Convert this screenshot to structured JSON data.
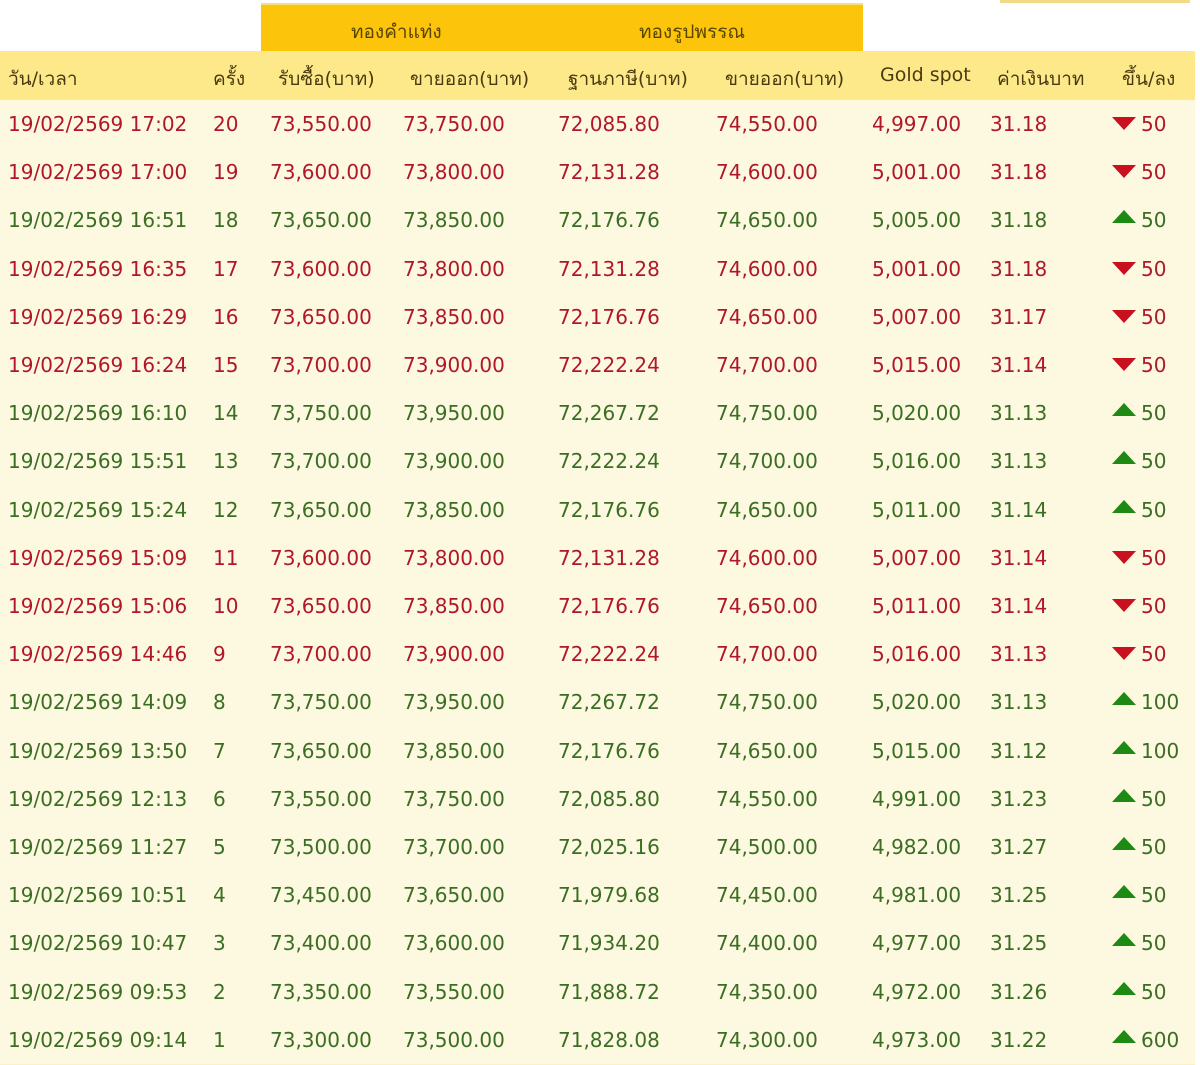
{
  "header": {
    "group1": "ทองคำแท่ง",
    "group2": "ทองรูปพรรณ",
    "columns": [
      "วัน/เวลา",
      "ครั้ง",
      "รับซื้อ(บาท)",
      "ขายออก(บาท)",
      "ฐานภาษี(บาท)",
      "ขายออก(บาท)",
      "Gold spot",
      "ค่าเงินบาท",
      "ขึ้น/ลง"
    ]
  },
  "colors": {
    "down": "#b0182a",
    "up": "#3a6e22",
    "header": "#fde98a",
    "group": "#fcc40a"
  },
  "rows": [
    [
      "19/02/2569 17:02",
      "20",
      "73,550.00",
      "73,750.00",
      "72,085.80",
      "74,550.00",
      "4,997.00",
      "31.18",
      "down",
      "50"
    ],
    [
      "19/02/2569 17:00",
      "19",
      "73,600.00",
      "73,800.00",
      "72,131.28",
      "74,600.00",
      "5,001.00",
      "31.18",
      "down",
      "50"
    ],
    [
      "19/02/2569 16:51",
      "18",
      "73,650.00",
      "73,850.00",
      "72,176.76",
      "74,650.00",
      "5,005.00",
      "31.18",
      "up",
      "50"
    ],
    [
      "19/02/2569 16:35",
      "17",
      "73,600.00",
      "73,800.00",
      "72,131.28",
      "74,600.00",
      "5,001.00",
      "31.18",
      "down",
      "50"
    ],
    [
      "19/02/2569 16:29",
      "16",
      "73,650.00",
      "73,850.00",
      "72,176.76",
      "74,650.00",
      "5,007.00",
      "31.17",
      "down",
      "50"
    ],
    [
      "19/02/2569 16:24",
      "15",
      "73,700.00",
      "73,900.00",
      "72,222.24",
      "74,700.00",
      "5,015.00",
      "31.14",
      "down",
      "50"
    ],
    [
      "19/02/2569 16:10",
      "14",
      "73,750.00",
      "73,950.00",
      "72,267.72",
      "74,750.00",
      "5,020.00",
      "31.13",
      "up",
      "50"
    ],
    [
      "19/02/2569 15:51",
      "13",
      "73,700.00",
      "73,900.00",
      "72,222.24",
      "74,700.00",
      "5,016.00",
      "31.13",
      "up",
      "50"
    ],
    [
      "19/02/2569 15:24",
      "12",
      "73,650.00",
      "73,850.00",
      "72,176.76",
      "74,650.00",
      "5,011.00",
      "31.14",
      "up",
      "50"
    ],
    [
      "19/02/2569 15:09",
      "11",
      "73,600.00",
      "73,800.00",
      "72,131.28",
      "74,600.00",
      "5,007.00",
      "31.14",
      "down",
      "50"
    ],
    [
      "19/02/2569 15:06",
      "10",
      "73,650.00",
      "73,850.00",
      "72,176.76",
      "74,650.00",
      "5,011.00",
      "31.14",
      "down",
      "50"
    ],
    [
      "19/02/2569 14:46",
      "9",
      "73,700.00",
      "73,900.00",
      "72,222.24",
      "74,700.00",
      "5,016.00",
      "31.13",
      "down",
      "50"
    ],
    [
      "19/02/2569 14:09",
      "8",
      "73,750.00",
      "73,950.00",
      "72,267.72",
      "74,750.00",
      "5,020.00",
      "31.13",
      "up",
      "100"
    ],
    [
      "19/02/2569 13:50",
      "7",
      "73,650.00",
      "73,850.00",
      "72,176.76",
      "74,650.00",
      "5,015.00",
      "31.12",
      "up",
      "100"
    ],
    [
      "19/02/2569 12:13",
      "6",
      "73,550.00",
      "73,750.00",
      "72,085.80",
      "74,550.00",
      "4,991.00",
      "31.23",
      "up",
      "50"
    ],
    [
      "19/02/2569 11:27",
      "5",
      "73,500.00",
      "73,700.00",
      "72,025.16",
      "74,500.00",
      "4,982.00",
      "31.27",
      "up",
      "50"
    ],
    [
      "19/02/2569 10:51",
      "4",
      "73,450.00",
      "73,650.00",
      "71,979.68",
      "74,450.00",
      "4,981.00",
      "31.25",
      "up",
      "50"
    ],
    [
      "19/02/2569 10:47",
      "3",
      "73,400.00",
      "73,600.00",
      "71,934.20",
      "74,400.00",
      "4,977.00",
      "31.25",
      "up",
      "50"
    ],
    [
      "19/02/2569 09:53",
      "2",
      "73,350.00",
      "73,550.00",
      "71,888.72",
      "74,350.00",
      "4,972.00",
      "31.26",
      "up",
      "50"
    ],
    [
      "19/02/2569 09:14",
      "1",
      "73,300.00",
      "73,500.00",
      "71,828.08",
      "74,300.00",
      "4,973.00",
      "31.22",
      "up",
      "600"
    ]
  ]
}
